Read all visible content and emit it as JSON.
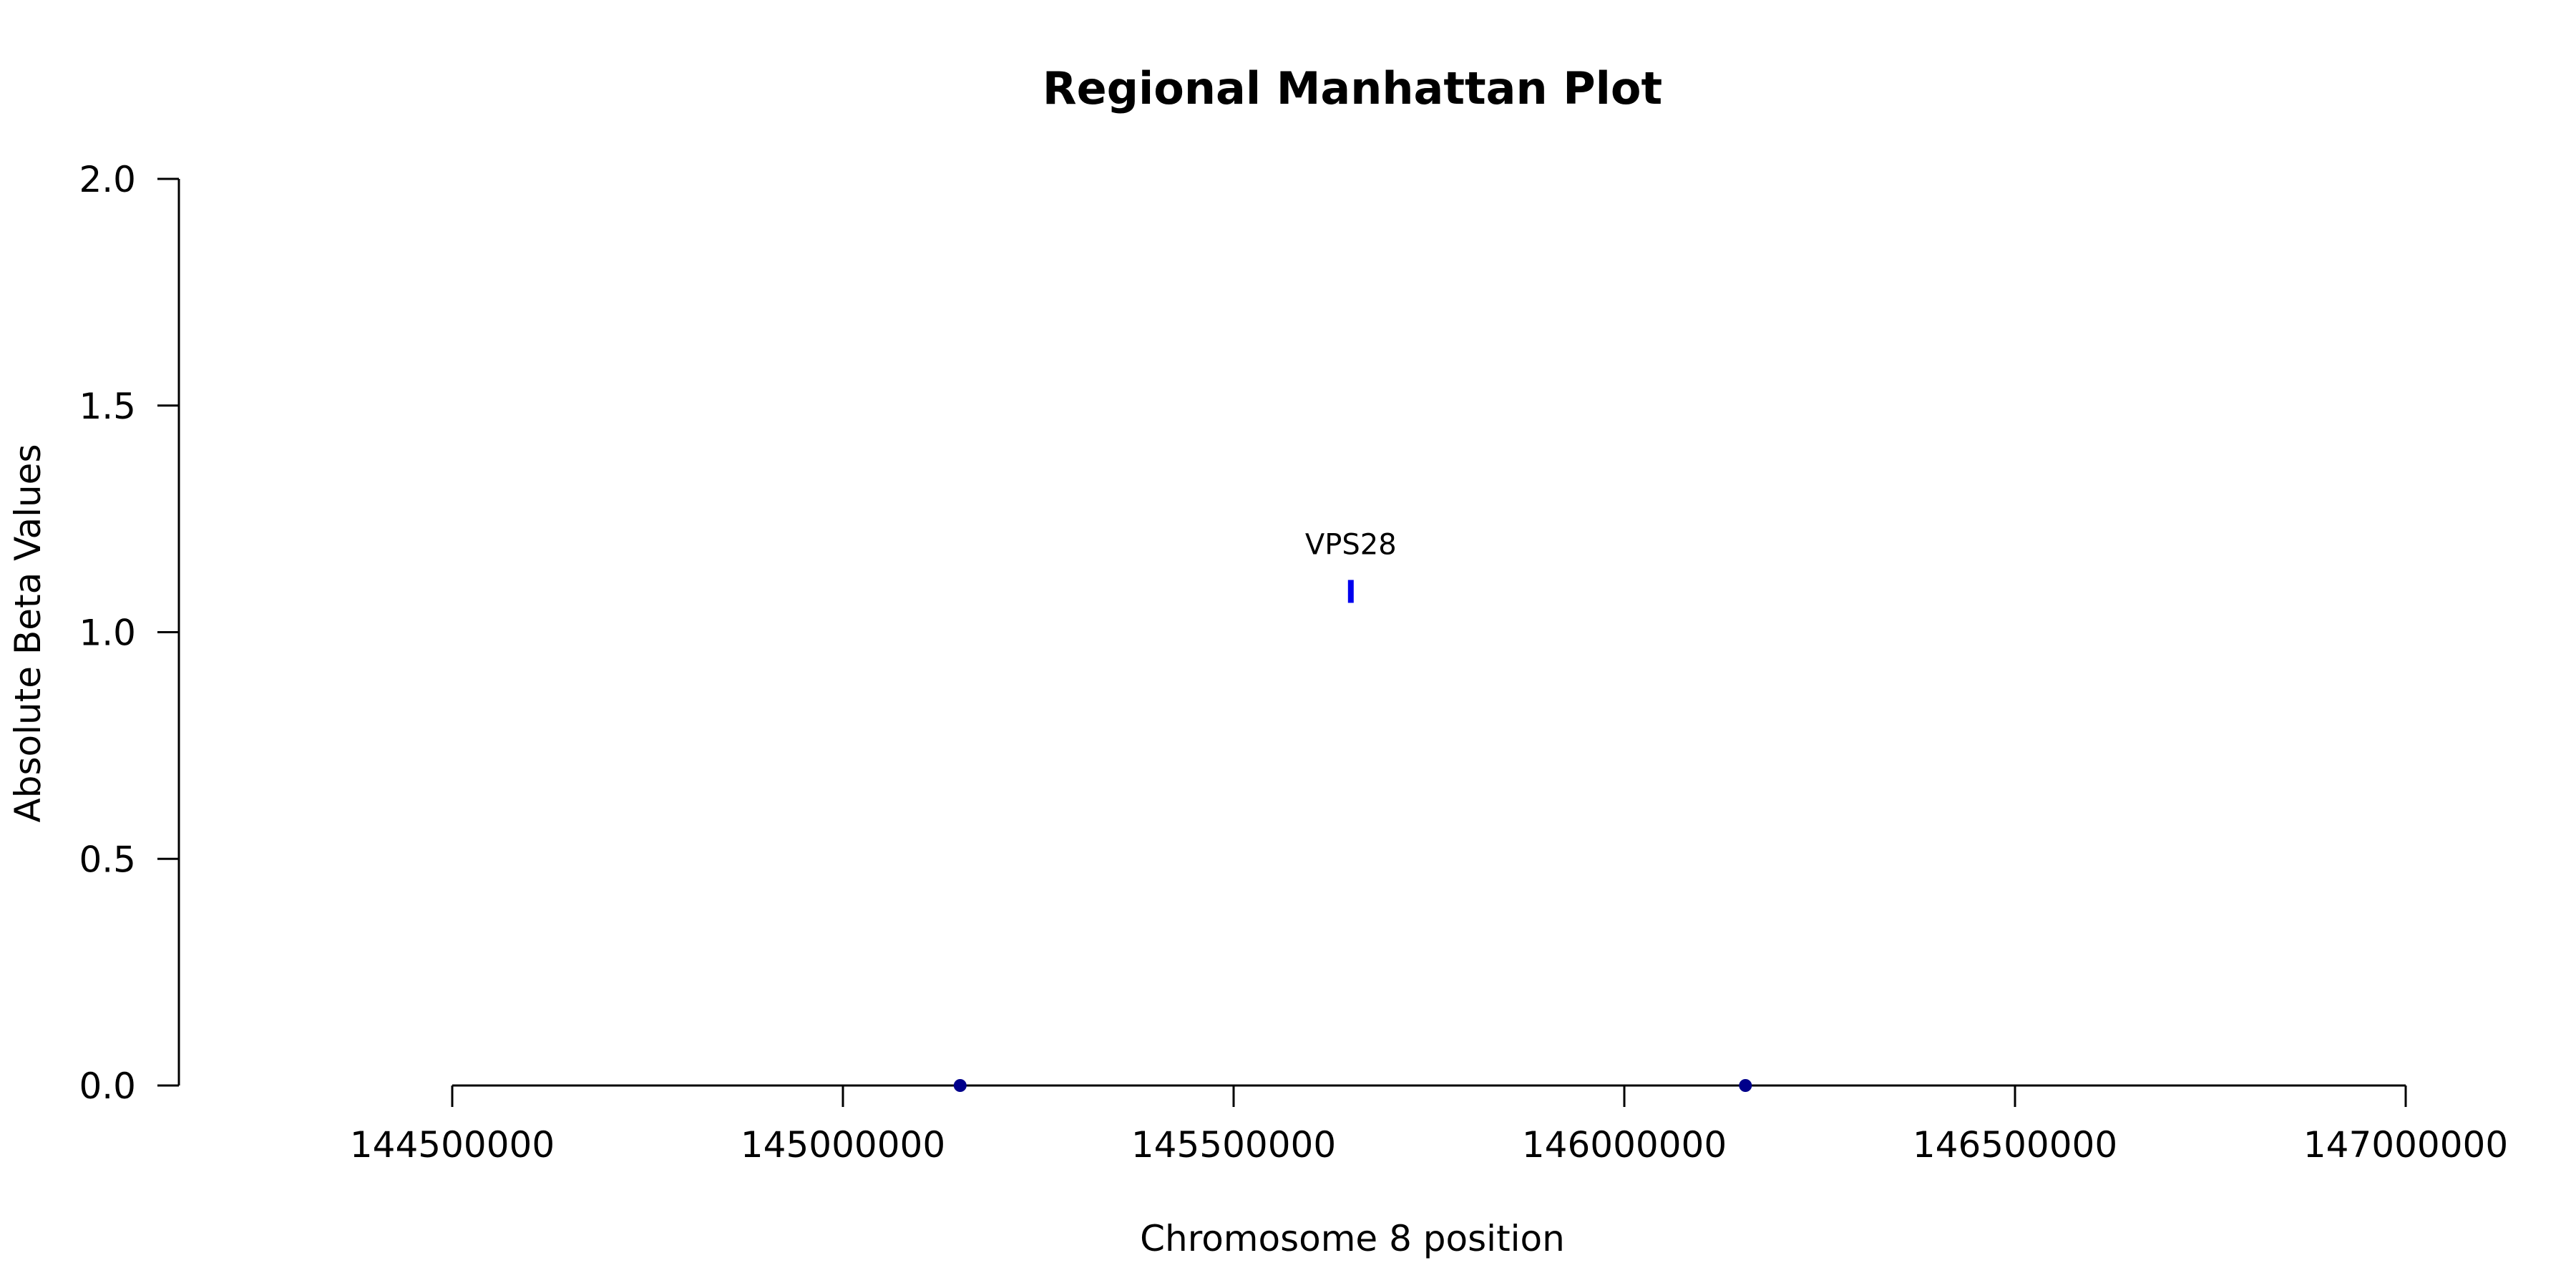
{
  "chart_data": {
    "type": "scatter",
    "title": "Regional Manhattan Plot",
    "xlabel": "Chromosome 8 position",
    "ylabel": "Absolute Beta Values",
    "xlim": [
      144150000,
      147130000
    ],
    "ylim": [
      0,
      2.0
    ],
    "x_ticks": [
      144500000,
      145000000,
      145500000,
      146000000,
      146500000,
      147000000
    ],
    "x_tick_labels": [
      "144500000",
      "145000000",
      "145500000",
      "146000000",
      "146500000",
      "147000000"
    ],
    "y_ticks": [
      0,
      0.5,
      1.0,
      1.5,
      2.0
    ],
    "y_tick_labels": [
      "0.0",
      "0.5",
      "1.0",
      "1.5",
      "2.0"
    ],
    "grid": false,
    "series": [
      {
        "points": [
          {
            "x": 145150000,
            "y": 0.0
          },
          {
            "x": 146155000,
            "y": 0.0
          }
        ],
        "color": "#00008b",
        "marker": "dot"
      }
    ],
    "highlights": [
      {
        "label": "VPS28",
        "x": 145650000,
        "y": 1.09,
        "color": "#0000ee",
        "marker": "bar"
      }
    ]
  }
}
